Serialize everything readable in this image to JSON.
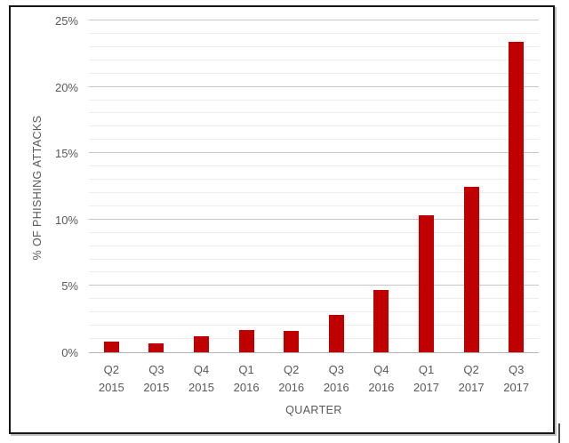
{
  "chart_data": {
    "type": "bar",
    "title": "",
    "xlabel": "QUARTER",
    "ylabel": "% OF PHISHING ATTACKS",
    "categories": [
      "Q2 2015",
      "Q3 2015",
      "Q4 2015",
      "Q1 2016",
      "Q2 2016",
      "Q3 2016",
      "Q4 2016",
      "Q1 2017",
      "Q2 2017",
      "Q3 2017"
    ],
    "values": [
      0.8,
      0.7,
      1.2,
      1.7,
      1.6,
      2.8,
      4.7,
      10.3,
      12.5,
      23.4
    ],
    "y_ticks": [
      "0%",
      "5%",
      "10%",
      "15%",
      "20%",
      "25%"
    ],
    "ylim": [
      0,
      25
    ],
    "y_major_step": 5,
    "y_minor_step": 1,
    "bar_color": "#c00000",
    "grid": "horizontal-major-and-minor",
    "legend": "none"
  }
}
